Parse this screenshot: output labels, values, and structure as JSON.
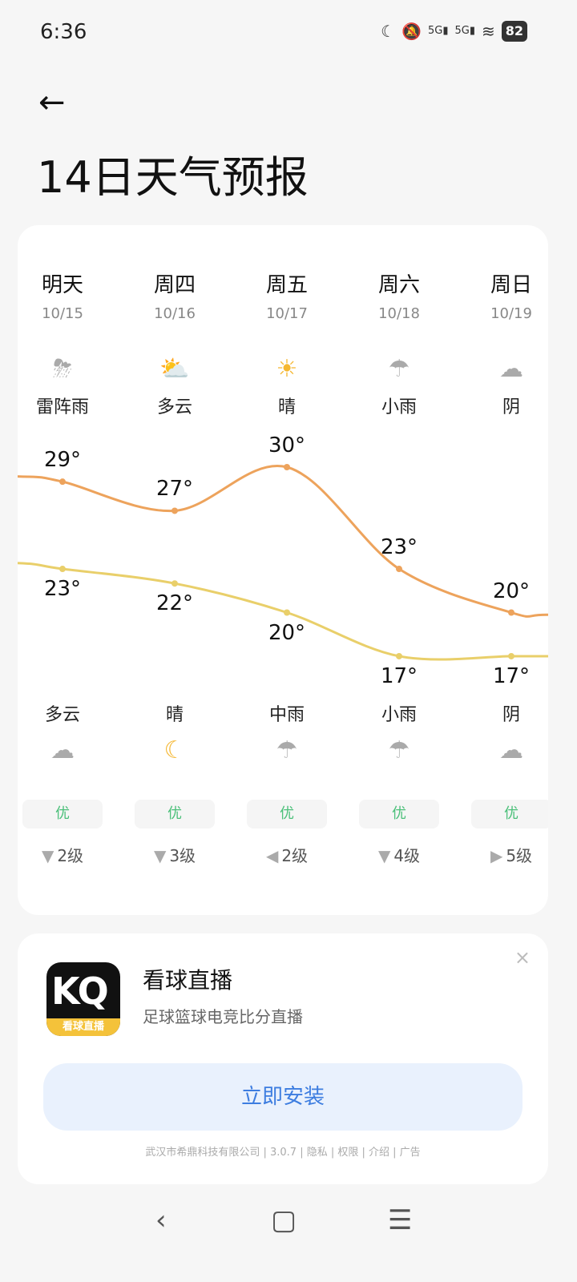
{
  "status": {
    "time": "6:36",
    "battery": "82",
    "icons": [
      "moon-icon",
      "mute-icon",
      "5g-signal-icon",
      "5g-signal-icon",
      "wifi-icon",
      "battery-icon"
    ],
    "net": "5G"
  },
  "header": {
    "back_icon": "arrow-left-icon",
    "title": "14日天气预报"
  },
  "colors": {
    "high_line": "#eda35c",
    "low_line": "#e9cf6a",
    "aqi": "#4cc07a",
    "install": "#3d7de0"
  },
  "days": [
    {
      "day": "明天",
      "date": "10/15",
      "icon": "thunder-rain-icon",
      "glyph": "⛈",
      "cond": "雷阵雨",
      "high": "29°",
      "low": "23°",
      "night_cond": "多云",
      "night_icon": "cloudy-moon-icon",
      "night_glyph": "☁",
      "aqi": "优",
      "wind_dir": "▼",
      "wind": "2级"
    },
    {
      "day": "周四",
      "date": "10/16",
      "icon": "partly-cloudy-icon",
      "glyph": "⛅",
      "cond": "多云",
      "high": "27°",
      "low": "22°",
      "night_cond": "晴",
      "night_icon": "moon-icon",
      "night_glyph": "☾",
      "aqi": "优",
      "wind_dir": "▼",
      "wind": "3级"
    },
    {
      "day": "周五",
      "date": "10/17",
      "icon": "sun-icon",
      "glyph": "☀",
      "cond": "晴",
      "high": "30°",
      "low": "20°",
      "night_cond": "中雨",
      "night_icon": "rain-icon",
      "night_glyph": "☂",
      "aqi": "优",
      "wind_dir": "◀",
      "wind": "2级"
    },
    {
      "day": "周六",
      "date": "10/18",
      "icon": "light-rain-icon",
      "glyph": "☂",
      "cond": "小雨",
      "high": "23°",
      "low": "17°",
      "night_cond": "小雨",
      "night_icon": "light-rain-icon",
      "night_glyph": "☂",
      "aqi": "优",
      "wind_dir": "▼",
      "wind": "4级"
    },
    {
      "day": "周日",
      "date": "10/19",
      "icon": "overcast-icon",
      "glyph": "☁",
      "cond": "阴",
      "high": "20°",
      "low": "17°",
      "night_cond": "阴",
      "night_icon": "overcast-icon",
      "night_glyph": "☁",
      "aqi": "优",
      "wind_dir": "▶",
      "wind": "5级"
    }
  ],
  "temps": {
    "high": [
      29,
      27,
      30,
      23,
      20
    ],
    "low": [
      23,
      22,
      20,
      17,
      17
    ]
  },
  "ad": {
    "logo_text": "KQ",
    "logo_band": "看球直播",
    "name": "看球直播",
    "desc": "足球篮球电竞比分直播",
    "install": "立即安装",
    "close": "×",
    "footer": "武汉市希鼎科技有限公司 | 3.0.7 | 隐私 | 权限 | 介绍 | 广告"
  },
  "navbar": {
    "back": "‹",
    "home": "▢",
    "menu": "☰"
  }
}
